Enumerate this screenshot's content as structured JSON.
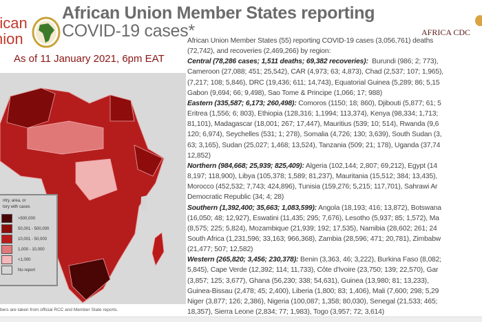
{
  "header": {
    "title_line1": "African Union Member States reporting",
    "title_line2": "COVID-19 cases*",
    "as_of": "As of 11 January 2021, 6pm EAT",
    "au_logo_text": [
      "rican",
      "nion"
    ],
    "cdc_logo": "AFRICA CDC"
  },
  "colors": {
    "accent": "#8b1414",
    "title": "#6b6b6b"
  },
  "legend": {
    "heading": [
      "ntry, area, or",
      "tory with cases"
    ],
    "items": [
      {
        "label": ">500,000",
        "color": "#4a0505"
      },
      {
        "label": "50,001 - 500,000",
        "color": "#8e0c0c"
      },
      {
        "label": "10,001 - 50,000",
        "color": "#bb1a1a"
      },
      {
        "label": "1,000 - 10,000",
        "color": "#e27a7a"
      },
      {
        "label": "<1,000",
        "color": "#f4b8b8"
      },
      {
        "label": "No report",
        "color": "#d6d6d6"
      }
    ]
  },
  "text_lines": [
    {
      "b": "",
      "t": "African Union Member States (55) reporting COVID-19 cases (3,056,761) deaths"
    },
    {
      "b": "",
      "t": "(72,742), and recoveries (2,469,266) by region:"
    },
    {
      "b": "Central (78,286 cases; 1,511 deaths; 69,382 recoveries):",
      "t": "  Burundi (986; 2; 773),"
    },
    {
      "b": "",
      "t": "Cameroon (27,088; 451; 25,542), CAR (4,973; 63; 4,873), Chad (2,537; 107; 1,965),"
    },
    {
      "b": "",
      "t": "(7,217; 108; 5,846), DRC (19,436; 611; 14,743), Equatorial Guinea (5,289; 86; 5,15"
    },
    {
      "b": "",
      "t": "Gabon (9,694; 66; 9,498), Sao Tome & Principe (1,066; 17; 988)"
    },
    {
      "b": "Eastern (335,587; 6,173; 260,498):",
      "t": " Comoros (1150; 18; 860), Djibouti (5,877; 61; 5"
    },
    {
      "b": "",
      "t": "Eritrea (1,556; 6; 803), Ethiopia (128,316; 1,1994; 113,374), Kenya (98,334; 1,713;"
    },
    {
      "b": "",
      "t": "81,101), Madagascar (18,001; 267; 17,447), Mauritius (539; 10; 514), Rwanda (9,6"
    },
    {
      "b": "",
      "t": "120; 6,974), Seychelles (531; 1; 278), Somalia (4,726; 130; 3,639), South Sudan (3,"
    },
    {
      "b": "",
      "t": "63; 3,165), Sudan (25,027; 1,468; 13,524), Tanzania (509; 21; 178), Uganda (37,74"
    },
    {
      "b": "",
      "t": "12,852)"
    },
    {
      "b": "Northern (984,668; 25,939; 825,409):",
      "t": " Algeria (102,144; 2,807; 69,212), Egypt (14"
    },
    {
      "b": "",
      "t": "8,197; 118,900), Libya (105,378; 1,589; 81,237), Mauritania (15,512; 384; 13,435),"
    },
    {
      "b": "",
      "t": "Morocco (452,532; 7,743; 424,896), Tunisia (159,276; 5,215; 117,701), Sahrawi Ar"
    },
    {
      "b": "",
      "t": "Democratic Republic (34; 4; 28)"
    },
    {
      "b": "Southern (1,392,400; 35,663; 1,083,599):",
      "t": " Angola (18,193; 416; 13,872), Botswana"
    },
    {
      "b": "",
      "t": "(16,050; 48; 12,927), Eswatini (11,435; 295; 7,676), Lesotho (5,937; 85; 1,572), Ma"
    },
    {
      "b": "",
      "t": "(8,575; 225; 5,824), Mozambique (21,939; 192; 17,535), Namibia (28,602; 261; 24"
    },
    {
      "b": "",
      "t": "South Africa (1,231,596; 33,163; 966,368), Zambia (28,596; 471; 20,781), Zimbabw"
    },
    {
      "b": "",
      "t": "(21,477; 507; 12,582)"
    },
    {
      "b": "Western (265,820; 3,456; 230,378):",
      "t": " Benin (3,363, 46; 3,222), Burkina Faso (8,082;"
    },
    {
      "b": "",
      "t": "5,845), Cape Verde (12,392; 114; 11,733), Côte d'Ivoire (23,750; 139; 22,570), Gar"
    },
    {
      "b": "",
      "t": "(3,857; 125; 3,677), Ghana (56,230; 338; 54,631), Guinea (13,980; 81; 13,233),"
    },
    {
      "b": "",
      "t": "Guinea-Bissau (2,478; 45; 2,400), Liberia (1,800; 83; 1,406), Mali (7,600; 298; 5,29"
    },
    {
      "b": "",
      "t": "Niger (3,877; 126; 2,386), Nigeria (100,087; 1,358; 80,030), Senegal (21,533; 465;"
    },
    {
      "b": "",
      "t": "18,357), Sierra Leone (2,834; 77; 1,983), Togo (3,957; 72; 3,614)"
    }
  ],
  "footnote": "bers are taken from official RCC and Member State reports."
}
